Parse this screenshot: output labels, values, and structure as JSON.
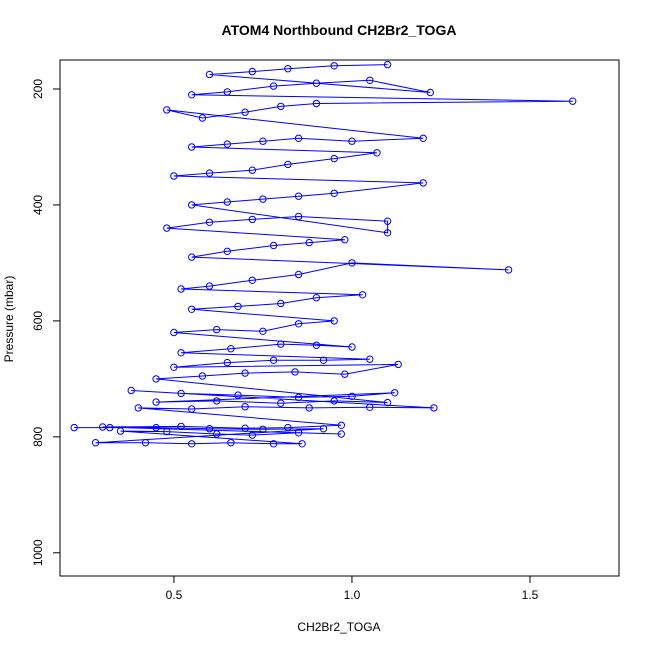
{
  "chart_data": {
    "type": "line",
    "title": "ATOM4 Northbound CH2Br2_TOGA",
    "xlabel": "CH2Br2_TOGA",
    "ylabel": "Pressure (mbar)",
    "xlim": [
      0.18,
      1.75
    ],
    "ylim": [
      1040,
      150
    ],
    "y_reversed": true,
    "x_ticks": [
      0.5,
      1.0,
      1.5
    ],
    "x_tick_labels": [
      "0.5",
      "1.0",
      "1.5"
    ],
    "y_ticks": [
      200,
      400,
      600,
      800,
      1000
    ],
    "y_tick_labels": [
      "200",
      "400",
      "600",
      "800",
      "1000"
    ],
    "grid": false,
    "legend": "none",
    "series_color": "#0000ff",
    "marker": "open-circle",
    "series": [
      {
        "values_note_free": true,
        "points": [
          [
            0.22,
            784
          ],
          [
            0.32,
            784
          ],
          [
            0.45,
            784
          ],
          [
            0.6,
            786
          ],
          [
            0.75,
            787
          ],
          [
            0.92,
            786
          ],
          [
            0.28,
            810
          ],
          [
            0.42,
            810
          ],
          [
            0.55,
            812
          ],
          [
            0.66,
            810
          ],
          [
            0.78,
            812
          ],
          [
            0.86,
            812
          ],
          [
            0.35,
            790
          ],
          [
            0.48,
            791
          ],
          [
            0.62,
            795
          ],
          [
            0.72,
            797
          ],
          [
            0.85,
            793
          ],
          [
            0.97,
            795
          ],
          [
            0.3,
            783
          ],
          [
            0.52,
            782
          ],
          [
            0.7,
            785
          ],
          [
            0.82,
            784
          ],
          [
            0.97,
            780
          ],
          [
            0.4,
            750
          ],
          [
            0.55,
            752
          ],
          [
            0.7,
            748
          ],
          [
            0.88,
            750
          ],
          [
            1.05,
            749
          ],
          [
            1.23,
            750
          ],
          [
            0.38,
            720
          ],
          [
            0.52,
            725
          ],
          [
            0.68,
            728
          ],
          [
            0.85,
            732
          ],
          [
            1.0,
            730
          ],
          [
            1.12,
            724
          ],
          [
            0.45,
            740
          ],
          [
            0.62,
            738
          ],
          [
            0.8,
            742
          ],
          [
            0.95,
            738
          ],
          [
            1.1,
            741
          ],
          [
            0.45,
            700
          ],
          [
            0.58,
            695
          ],
          [
            0.7,
            690
          ],
          [
            0.84,
            688
          ],
          [
            0.98,
            692
          ],
          [
            1.13,
            675
          ],
          [
            0.5,
            680
          ],
          [
            0.65,
            672
          ],
          [
            0.78,
            668
          ],
          [
            0.92,
            668
          ],
          [
            1.05,
            666
          ],
          [
            0.52,
            655
          ],
          [
            0.66,
            648
          ],
          [
            0.8,
            640
          ],
          [
            0.9,
            642
          ],
          [
            1.0,
            645
          ],
          [
            0.5,
            620
          ],
          [
            0.62,
            615
          ],
          [
            0.75,
            618
          ],
          [
            0.85,
            605
          ],
          [
            0.95,
            600
          ],
          [
            0.55,
            580
          ],
          [
            0.68,
            575
          ],
          [
            0.8,
            570
          ],
          [
            0.9,
            560
          ],
          [
            1.03,
            555
          ],
          [
            0.52,
            545
          ],
          [
            0.6,
            540
          ],
          [
            0.72,
            530
          ],
          [
            0.85,
            520
          ],
          [
            1.0,
            500
          ],
          [
            1.44,
            512
          ],
          [
            0.55,
            490
          ],
          [
            0.65,
            480
          ],
          [
            0.78,
            470
          ],
          [
            0.88,
            465
          ],
          [
            0.98,
            460
          ],
          [
            0.48,
            440
          ],
          [
            0.6,
            430
          ],
          [
            0.72,
            425
          ],
          [
            0.85,
            420
          ],
          [
            1.1,
            428
          ],
          [
            1.1,
            448
          ],
          [
            0.55,
            400
          ],
          [
            0.65,
            395
          ],
          [
            0.75,
            390
          ],
          [
            0.85,
            385
          ],
          [
            0.95,
            380
          ],
          [
            1.2,
            362
          ],
          [
            0.5,
            350
          ],
          [
            0.6,
            345
          ],
          [
            0.72,
            340
          ],
          [
            0.82,
            330
          ],
          [
            0.95,
            320
          ],
          [
            1.07,
            310
          ],
          [
            0.55,
            300
          ],
          [
            0.65,
            295
          ],
          [
            0.75,
            290
          ],
          [
            0.85,
            285
          ],
          [
            1.0,
            290
          ],
          [
            1.2,
            285
          ],
          [
            0.48,
            236
          ],
          [
            0.58,
            250
          ],
          [
            0.7,
            240
          ],
          [
            0.8,
            230
          ],
          [
            0.9,
            225
          ],
          [
            1.62,
            221
          ],
          [
            0.55,
            210
          ],
          [
            0.65,
            205
          ],
          [
            0.78,
            195
          ],
          [
            0.9,
            190
          ],
          [
            1.05,
            185
          ],
          [
            1.22,
            206
          ],
          [
            0.6,
            175
          ],
          [
            0.72,
            170
          ],
          [
            0.82,
            165
          ],
          [
            0.95,
            160
          ],
          [
            1.1,
            158
          ]
        ]
      }
    ]
  }
}
